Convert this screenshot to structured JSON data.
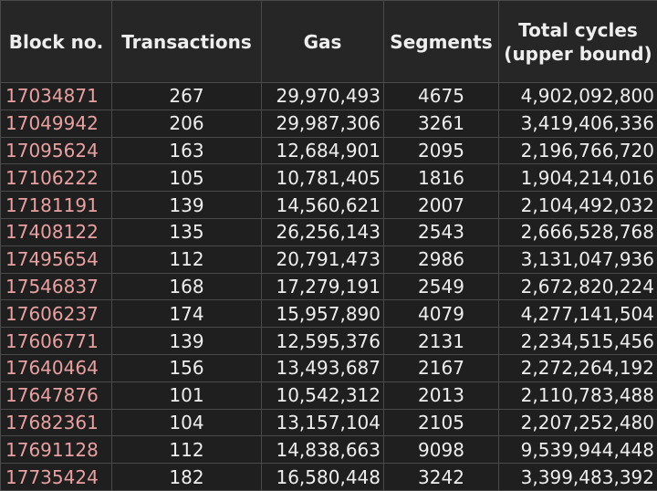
{
  "headers": {
    "block": "Block no.",
    "transactions": "Transactions",
    "gas": "Gas",
    "segments": "Segments",
    "cycles": "Total cycles (upper bound)"
  },
  "rows": [
    {
      "block": "17034871",
      "transactions": "267",
      "gas": "29,970,493",
      "segments": "4675",
      "cycles": "4,902,092,800"
    },
    {
      "block": "17049942",
      "transactions": "206",
      "gas": "29,987,306",
      "segments": "3261",
      "cycles": "3,419,406,336"
    },
    {
      "block": "17095624",
      "transactions": "163",
      "gas": "12,684,901",
      "segments": "2095",
      "cycles": "2,196,766,720"
    },
    {
      "block": "17106222",
      "transactions": "105",
      "gas": "10,781,405",
      "segments": "1816",
      "cycles": "1,904,214,016"
    },
    {
      "block": "17181191",
      "transactions": "139",
      "gas": "14,560,621",
      "segments": "2007",
      "cycles": "2,104,492,032"
    },
    {
      "block": "17408122",
      "transactions": "135",
      "gas": "26,256,143",
      "segments": "2543",
      "cycles": "2,666,528,768"
    },
    {
      "block": "17495654",
      "transactions": "112",
      "gas": "20,791,473",
      "segments": "2986",
      "cycles": "3,131,047,936"
    },
    {
      "block": "17546837",
      "transactions": "168",
      "gas": "17,279,191",
      "segments": "2549",
      "cycles": "2,672,820,224"
    },
    {
      "block": "17606237",
      "transactions": "174",
      "gas": "15,957,890",
      "segments": "4079",
      "cycles": "4,277,141,504"
    },
    {
      "block": "17606771",
      "transactions": "139",
      "gas": "12,595,376",
      "segments": "2131",
      "cycles": "2,234,515,456"
    },
    {
      "block": "17640464",
      "transactions": "156",
      "gas": "13,493,687",
      "segments": "2167",
      "cycles": "2,272,264,192"
    },
    {
      "block": "17647876",
      "transactions": "101",
      "gas": "10,542,312",
      "segments": "2013",
      "cycles": "2,110,783,488"
    },
    {
      "block": "17682361",
      "transactions": "104",
      "gas": "13,157,104",
      "segments": "2105",
      "cycles": "2,207,252,480"
    },
    {
      "block": "17691128",
      "transactions": "112",
      "gas": "14,838,663",
      "segments": "9098",
      "cycles": "9,539,944,448"
    },
    {
      "block": "17735424",
      "transactions": "182",
      "gas": "16,580,448",
      "segments": "3242",
      "cycles": "3,399,483,392"
    }
  ],
  "colors": {
    "background": "#1f1f1f",
    "text": "#eeeeee",
    "link": "#e8a0a0",
    "border": "#4a4a4a"
  }
}
